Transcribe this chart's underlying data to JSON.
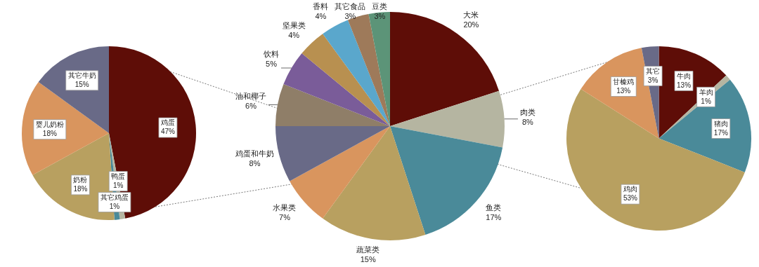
{
  "chart_data": [
    {
      "type": "pie",
      "categories": [
        "鸡蛋",
        "鸭蛋",
        "其它鸡蛋",
        "奶粉",
        "婴儿奶粉",
        "其它牛奶"
      ],
      "values": [
        47,
        1,
        1,
        18,
        18,
        15
      ],
      "value_labels": [
        "47%",
        "1%",
        "1%",
        "18%",
        "18%",
        "15%"
      ],
      "colors": [
        "#5e0d07",
        "#b5b5a1",
        "#4a8a99",
        "#b8a060",
        "#d9955e",
        "#696a87"
      ]
    },
    {
      "type": "pie",
      "categories": [
        "大米",
        "肉类",
        "鱼类",
        "蔬菜类",
        "水果类",
        "鸡蛋和牛奶",
        "油和椰子",
        "饮料",
        "坚果类",
        "香料",
        "其它食品",
        "豆类"
      ],
      "values": [
        20,
        8,
        17,
        15,
        7,
        8,
        6,
        5,
        4,
        4,
        3,
        3
      ],
      "value_labels": [
        "20%",
        "8%",
        "17%",
        "15%",
        "7%",
        "8%",
        "6%",
        "5%",
        "4%",
        "4%",
        "3%",
        "3%"
      ],
      "colors": [
        "#5e0d07",
        "#b5b5a1",
        "#4a8a99",
        "#b8a060",
        "#d9955e",
        "#696a87",
        "#8f7e68",
        "#7a5c99",
        "#b89050",
        "#5aa7cc",
        "#9e7a5a",
        "#5c9478"
      ]
    },
    {
      "type": "pie",
      "categories": [
        "牛肉",
        "羊肉",
        "猪肉",
        "鸡肉",
        "甘榛鸡",
        "其它"
      ],
      "values": [
        13,
        1,
        17,
        53,
        13,
        3
      ],
      "value_labels": [
        "13%",
        "1%",
        "17%",
        "53%",
        "13%",
        "3%"
      ],
      "colors": [
        "#5e0d07",
        "#b5b5a1",
        "#4a8a99",
        "#b8a060",
        "#d9955e",
        "#696a87"
      ]
    }
  ]
}
